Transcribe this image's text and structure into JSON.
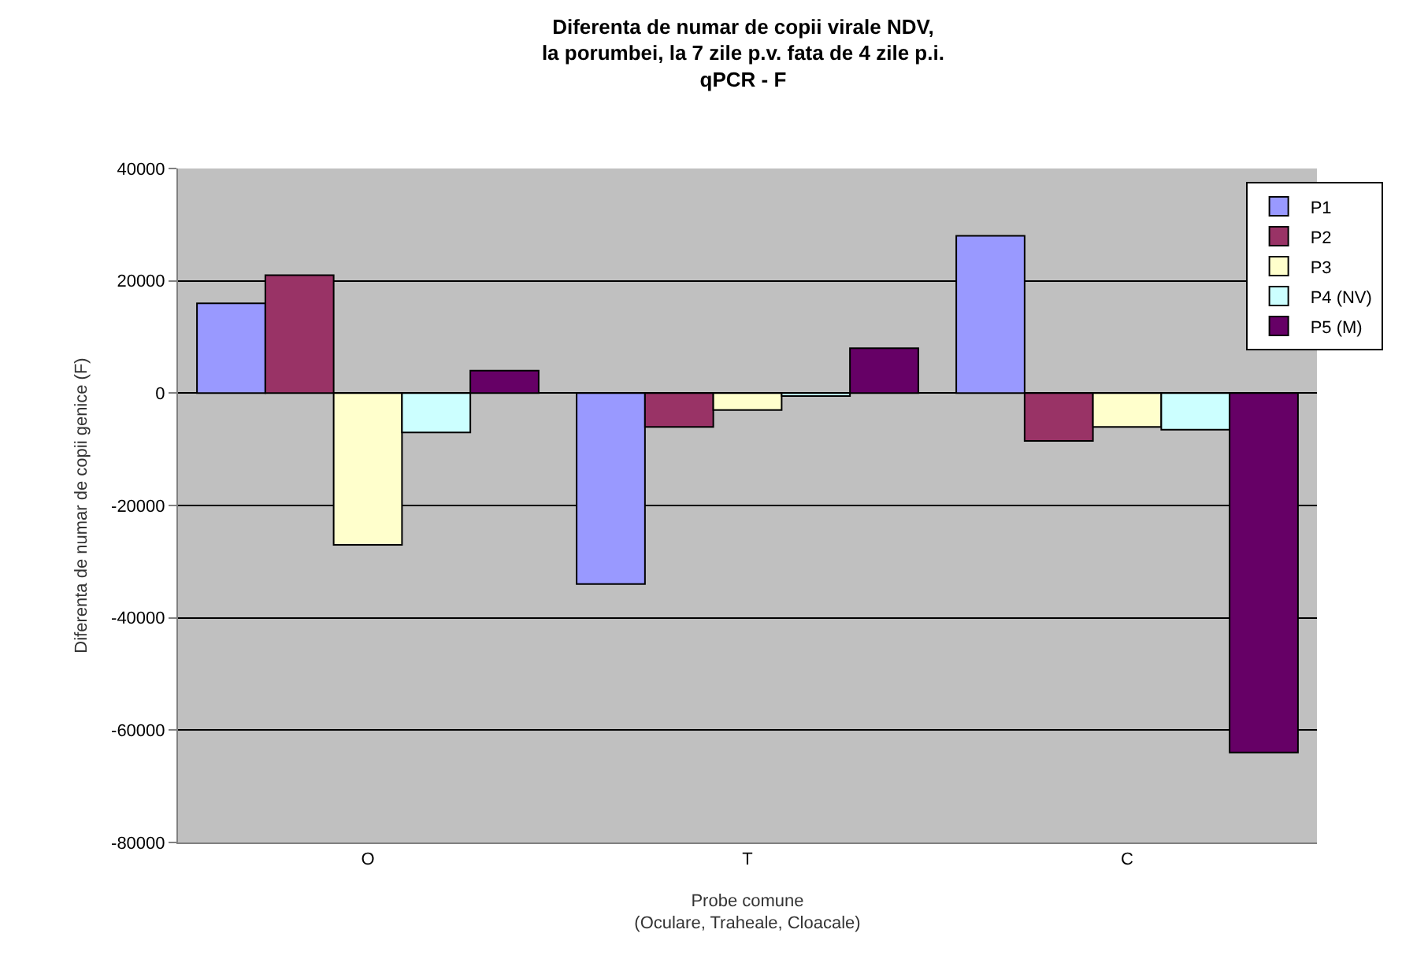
{
  "chart_data": {
    "type": "bar",
    "title": "Diferenta de numar de copii virale NDV,\nla porumbei, la 7 zile p.v. fata de 4 zile p.i.\nqPCR - F",
    "xlabel": "Probe comune\n(Oculare, Traheale, Cloacale)",
    "ylabel": "Diferenta de numar de copii genice (F)",
    "categories": [
      "O",
      "T",
      "C"
    ],
    "series": [
      {
        "name": "P1",
        "color": "#9999ff",
        "values": [
          16000,
          -34000,
          28000
        ]
      },
      {
        "name": "P2",
        "color": "#993366",
        "values": [
          21000,
          -6000,
          -8500
        ]
      },
      {
        "name": "P3",
        "color": "#ffffcc",
        "values": [
          -27000,
          -3000,
          -6000
        ]
      },
      {
        "name": "P4 (NV)",
        "color": "#ccffff",
        "values": [
          -7000,
          -500,
          -6500
        ]
      },
      {
        "name": "P5 (M)",
        "color": "#660066",
        "values": [
          4000,
          8000,
          -64000
        ]
      }
    ],
    "ylim": [
      -80000,
      40000
    ],
    "yticks": [
      -80000,
      -60000,
      -40000,
      -20000,
      0,
      20000,
      40000
    ],
    "grid": "y",
    "legend": "top right"
  }
}
